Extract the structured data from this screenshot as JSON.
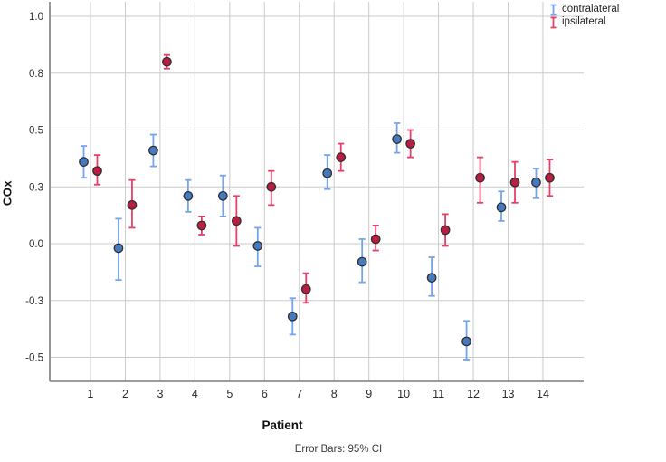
{
  "figure": {
    "y_axis": {
      "title": "COx",
      "tick_labels": [
        "1.0",
        "0.8",
        "0.5",
        "0.3",
        "0.0",
        "-0.3",
        "-0.5"
      ],
      "tick_values": [
        1.0,
        0.75,
        0.5,
        0.25,
        0.0,
        -0.25,
        -0.5
      ]
    },
    "x_axis": {
      "title": "Patient",
      "tick_labels": [
        "1",
        "2",
        "3",
        "4",
        "5",
        "6",
        "7",
        "8",
        "9",
        "10",
        "11",
        "12",
        "13",
        "14"
      ]
    },
    "legend": [
      {
        "label": "contralateral",
        "glyph_color": "#74a4ef"
      },
      {
        "label": "ipsilateral",
        "glyph_color": "#e54069"
      }
    ],
    "caption": "Error Bars: 95% CI"
  },
  "chart_data": {
    "type": "scatter",
    "subtype": "clustered-error-bar",
    "title": "",
    "xlabel": "Patient",
    "ylabel": "COx",
    "error_bars": "95% CI",
    "grid": true,
    "legend_position": "top-right-outside",
    "categories": [
      1,
      2,
      3,
      4,
      5,
      6,
      7,
      8,
      9,
      10,
      11,
      12,
      13,
      14
    ],
    "y_ticks": {
      "values": [
        1.0,
        0.75,
        0.5,
        0.25,
        0.0,
        -0.25,
        -0.5
      ],
      "labels": [
        "1.0",
        "0.8",
        "0.5",
        "0.3",
        "0.0",
        "-0.3",
        "-0.5"
      ]
    },
    "ylim": [
      -0.605,
      1.07
    ],
    "series": [
      {
        "name": "contralateral",
        "marker_color": "#467ac0",
        "bar_color": "#74a4ef",
        "means": [
          0.36,
          -0.02,
          0.41,
          0.21,
          0.21,
          -0.01,
          -0.32,
          0.31,
          -0.08,
          0.46,
          -0.15,
          -0.43,
          0.16,
          0.27
        ],
        "ci_low": [
          0.29,
          -0.16,
          0.34,
          0.14,
          0.12,
          -0.1,
          -0.4,
          0.24,
          -0.17,
          0.4,
          -0.23,
          -0.51,
          0.1,
          0.2
        ],
        "ci_high": [
          0.43,
          0.11,
          0.48,
          0.28,
          0.3,
          0.07,
          -0.24,
          0.39,
          0.02,
          0.53,
          -0.06,
          -0.34,
          0.23,
          0.33
        ]
      },
      {
        "name": "ipsilateral",
        "marker_color": "#b91d41",
        "bar_color": "#e54069",
        "means": [
          0.32,
          0.17,
          0.8,
          0.08,
          0.1,
          0.25,
          -0.2,
          0.38,
          0.02,
          0.44,
          0.06,
          0.29,
          0.27,
          0.29
        ],
        "ci_low": [
          0.26,
          0.07,
          0.77,
          0.04,
          -0.01,
          0.17,
          -0.26,
          0.32,
          -0.03,
          0.38,
          -0.01,
          0.18,
          0.18,
          0.21
        ],
        "ci_high": [
          0.39,
          0.28,
          0.83,
          0.12,
          0.21,
          0.32,
          -0.13,
          0.44,
          0.08,
          0.5,
          0.13,
          0.38,
          0.36,
          0.37
        ]
      }
    ],
    "style": {
      "gridline_color": "#cbcbcb",
      "axis_line_color": "#7c7c7c",
      "tick_label_color": "#2b2b2b",
      "marker_outline_color": "#303030"
    }
  }
}
